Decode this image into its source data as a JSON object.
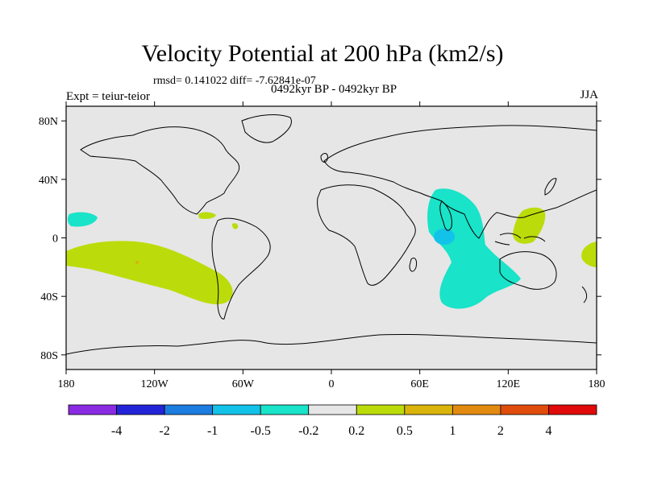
{
  "title": "Velocity Potential at 200 hPa (km2/s)",
  "stats": "rmsd= 0.141022 diff= -7.62841e-07",
  "left_label": "Expt = teiur-teior",
  "center_label": "0492kyr BP - 0492kyr BP",
  "right_label": "JJA",
  "lat_ticks": [
    {
      "lat": 80,
      "label": "80N"
    },
    {
      "lat": 40,
      "label": "40N"
    },
    {
      "lat": 0,
      "label": "0"
    },
    {
      "lat": -40,
      "label": "40S"
    },
    {
      "lat": -80,
      "label": "80S"
    }
  ],
  "lon_ticks": [
    {
      "lon": -180,
      "label": "180"
    },
    {
      "lon": -120,
      "label": "120W"
    },
    {
      "lon": -60,
      "label": "60W"
    },
    {
      "lon": 0,
      "label": "0"
    },
    {
      "lon": 60,
      "label": "60E"
    },
    {
      "lon": 120,
      "label": "120E"
    },
    {
      "lon": 180,
      "label": "180"
    }
  ],
  "colorbar": {
    "colors": [
      "#8a2be2",
      "#2323d8",
      "#1c7de0",
      "#12c2e8",
      "#19e3c8",
      "#e6e6e6",
      "#bbdc0a",
      "#dab40a",
      "#e28a10",
      "#e04c0c",
      "#e00a0a"
    ],
    "labels": [
      "-4",
      "-2",
      "-1",
      "-0.5",
      "-0.2",
      "0.2",
      "0.5",
      "1",
      "2",
      "4"
    ]
  },
  "colors": {
    "ocean": "#e6e6e6",
    "negative_light": "#19e3c8",
    "negative_medium": "#12c2e8",
    "positive_light": "#bbdc0a",
    "positive_medium": "#dab40a"
  }
}
